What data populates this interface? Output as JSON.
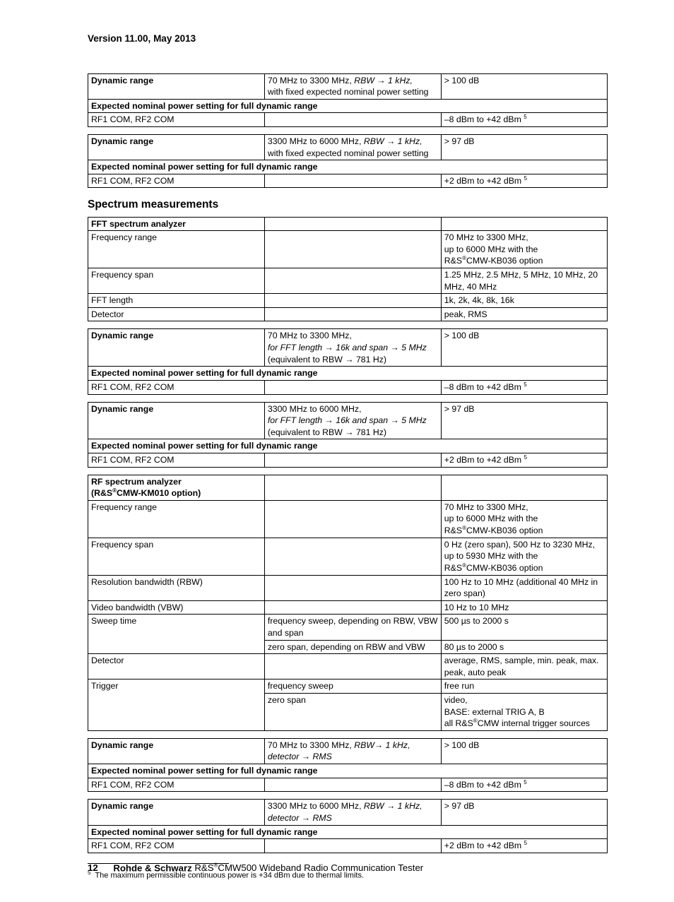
{
  "doc": {
    "version_header": "Version 11.00, May 2013",
    "section_title": "Spectrum measurements",
    "footnote_num": "5",
    "footnote_text": "The maximum permissible continuous power is +34 dBm due to thermal limits.",
    "page_number": "12",
    "footer_brand": "Rohde & Schwarz ",
    "footer_product": "R&S®CMW500 Wideband Radio Communication Tester",
    "colors": {
      "text": "#000000",
      "background": "#ffffff",
      "border": "#000000"
    },
    "fonts": {
      "family": "Arial",
      "body_size_pt": 9,
      "header_size_pt": 10,
      "section_size_pt": 12
    }
  },
  "t1": {
    "r1c1": "Dynamic range",
    "r1c2a": "70 MHz to 3300 MHz, ",
    "r1c2b": "RBW → 1 kHz,",
    "r1c2c": "with fixed expected nominal power setting",
    "r1c3": "> 100 dB",
    "r2": "Expected nominal power setting for full dynamic range",
    "r3c1": "RF1 COM, RF2 COM",
    "r3c3": "–8 dBm to +42 dBm "
  },
  "t2": {
    "r1c1": "Dynamic range",
    "r1c2a": "3300 MHz to 6000 MHz, ",
    "r1c2b": "RBW → 1 kHz,",
    "r1c2c": "with fixed expected nominal power setting",
    "r1c3": "> 97 dB",
    "r2": "Expected nominal power setting for full dynamic range",
    "r3c1": "RF1 COM, RF2 COM",
    "r3c3": "+2 dBm to +42 dBm "
  },
  "t3": {
    "r1c1": "FFT spectrum analyzer",
    "r2c1": "Frequency range",
    "r2c3": "70 MHz to 3300 MHz,\nup to 6000 MHz with the\nR&S®CMW-KB036 option",
    "r3c1": "Frequency span",
    "r3c3": "1.25 MHz, 2.5 MHz, 5 MHz, 10 MHz, 20 MHz, 40 MHz",
    "r4c1": "FFT length",
    "r4c3": "1k, 2k, 4k, 8k, 16k",
    "r5c1": "Detector",
    "r5c3": "peak, RMS"
  },
  "t4": {
    "r1c1": "Dynamic range",
    "r1c2a": "70 MHz to 3300 MHz,",
    "r1c2b": "for FFT length → 16k and span → 5 MHz",
    "r1c2c": "(equivalent to RBW → 781 Hz)",
    "r1c3": "> 100 dB",
    "r2": "Expected nominal power setting for full dynamic range",
    "r3c1": "RF1 COM, RF2 COM",
    "r3c3": "–8 dBm to +42 dBm "
  },
  "t5": {
    "r1c1": "Dynamic range",
    "r1c2a": "3300 MHz to 6000 MHz,",
    "r1c2b": "for FFT length → 16k and span → 5 MHz",
    "r1c2c": "(equivalent to RBW → 781 Hz)",
    "r1c3": "> 97 dB",
    "r2": "Expected nominal power setting for full dynamic range",
    "r3c1": "RF1 COM, RF2 COM",
    "r3c3": "+2 dBm to +42 dBm "
  },
  "t6": {
    "r1c1": "RF spectrum analyzer\n(R&S®CMW-KM010 option)",
    "r2c1": "Frequency range",
    "r2c3": "70 MHz to 3300 MHz,\nup to 6000 MHz with the\nR&S®CMW-KB036 option",
    "r3c1": "Frequency span",
    "r3c3": "0 Hz (zero span), 500 Hz to 3230 MHz, up to 5930 MHz with the\nR&S®CMW-KB036 option",
    "r4c1": "Resolution bandwidth (RBW)",
    "r4c3": "100 Hz to 10 MHz (additional 40 MHz in zero span)",
    "r5c1": "Video bandwidth (VBW)",
    "r5c3": "10 Hz to 10 MHz",
    "r6c1": "Sweep time",
    "r6c2": "frequency sweep, depending on RBW, VBW and span",
    "r6c3": "500 µs to 2000 s",
    "r7c2": "zero span, depending on RBW and VBW",
    "r7c3": "80 µs to 2000 s",
    "r8c1": "Detector",
    "r8c3": "average, RMS, sample, min. peak, max. peak, auto peak",
    "r9c1": "Trigger",
    "r9c2": "frequency sweep",
    "r9c3": "free run",
    "r10c2": "zero span",
    "r10c3": "video,\nBASE: external TRIG A, B\nall R&S®CMW internal trigger sources"
  },
  "t7": {
    "r1c1": "Dynamic range",
    "r1c2a": "70 MHz to 3300 MHz, ",
    "r1c2b": "RBW→ 1 kHz,",
    "r1c2c": "detector → RMS",
    "r1c3": "> 100 dB",
    "r2": "Expected nominal power setting for full dynamic range",
    "r3c1": "RF1 COM, RF2 COM",
    "r3c3": "–8 dBm to +42 dBm "
  },
  "t8": {
    "r1c1": "Dynamic range",
    "r1c2a": "3300 MHz to 6000 MHz, ",
    "r1c2b": "RBW → 1 kHz,",
    "r1c2c": "detector →  RMS",
    "r1c3": "> 97 dB",
    "r2": "Expected nominal power setting for full dynamic range",
    "r3c1": "RF1 COM, RF2 COM",
    "r3c3": "+2 dBm to +42 dBm "
  }
}
